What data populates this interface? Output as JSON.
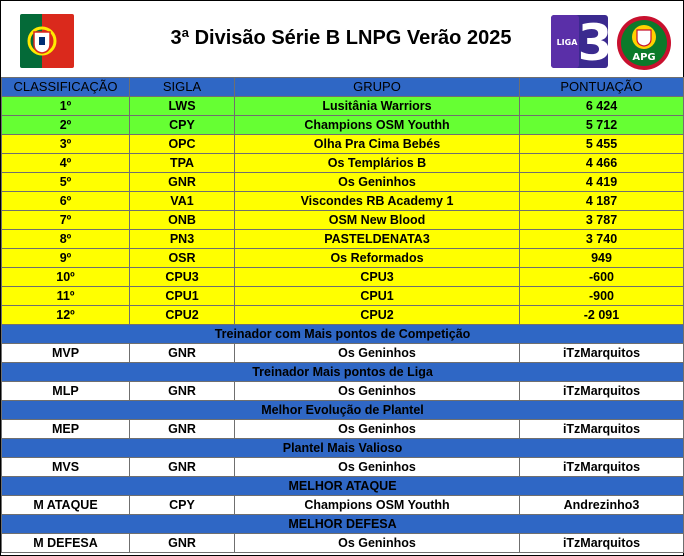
{
  "title": "3ª Divisão Série B LNPG Verão 2025",
  "logos": {
    "liga_text": "LIGA",
    "liga_number": "3",
    "apg_text": "APG"
  },
  "colors": {
    "header_blue": "#2f67c5",
    "green_row": "#66ff33",
    "yellow_row": "#ffff00"
  },
  "columns": [
    "CLASSIFICAÇÃO",
    "SIGLA",
    "GRUPO",
    "PONTUAÇÃO"
  ],
  "standings": [
    {
      "pos": "1º",
      "sigla": "LWS",
      "grupo": "Lusitânia Warriors",
      "pontos": "6 424",
      "highlight": "green"
    },
    {
      "pos": "2º",
      "sigla": "CPY",
      "grupo": "Champions OSM Youthh",
      "pontos": "5 712",
      "highlight": "green"
    },
    {
      "pos": "3º",
      "sigla": "OPC",
      "grupo": "Olha Pra Cima Bebés",
      "pontos": "5 455",
      "highlight": "yellow"
    },
    {
      "pos": "4º",
      "sigla": "TPA",
      "grupo": "Os Templários B",
      "pontos": "4 466",
      "highlight": "yellow"
    },
    {
      "pos": "5º",
      "sigla": "GNR",
      "grupo": "Os Geninhos",
      "pontos": "4 419",
      "highlight": "yellow"
    },
    {
      "pos": "6º",
      "sigla": "VA1",
      "grupo": "Viscondes RB Academy 1",
      "pontos": "4 187",
      "highlight": "yellow"
    },
    {
      "pos": "7º",
      "sigla": "ONB",
      "grupo": "OSM New Blood",
      "pontos": "3 787",
      "highlight": "yellow"
    },
    {
      "pos": "8º",
      "sigla": "PN3",
      "grupo": "PASTELDENATA3",
      "pontos": "3 740",
      "highlight": "yellow"
    },
    {
      "pos": "9º",
      "sigla": "OSR",
      "grupo": "Os Reformados",
      "pontos": "949",
      "highlight": "yellow"
    },
    {
      "pos": "10º",
      "sigla": "CPU3",
      "grupo": "CPU3",
      "pontos": "-600",
      "highlight": "yellow"
    },
    {
      "pos": "11º",
      "sigla": "CPU1",
      "grupo": "CPU1",
      "pontos": "-900",
      "highlight": "yellow"
    },
    {
      "pos": "12º",
      "sigla": "CPU2",
      "grupo": "CPU2",
      "pontos": "-2 091",
      "highlight": "yellow"
    }
  ],
  "awards": [
    {
      "section": "Treinador com Mais pontos de Competição",
      "code": "MVP",
      "sigla": "GNR",
      "grupo": "Os Geninhos",
      "player": "iTzMarquitos"
    },
    {
      "section": "Treinador Mais pontos de Liga",
      "code": "MLP",
      "sigla": "GNR",
      "grupo": "Os Geninhos",
      "player": "iTzMarquitos"
    },
    {
      "section": "Melhor Evolução de Plantel",
      "code": "MEP",
      "sigla": "GNR",
      "grupo": "Os Geninhos",
      "player": "iTzMarquitos"
    },
    {
      "section": "Plantel Mais Valioso",
      "code": "MVS",
      "sigla": "GNR",
      "grupo": "Os Geninhos",
      "player": "iTzMarquitos"
    },
    {
      "section": "MELHOR ATAQUE",
      "code": "M ATAQUE",
      "sigla": "CPY",
      "grupo": "Champions OSM Youthh",
      "player": "Andrezinho3"
    },
    {
      "section": "MELHOR DEFESA",
      "code": "M DEFESA",
      "sigla": "GNR",
      "grupo": "Os Geninhos",
      "player": "iTzMarquitos"
    }
  ]
}
